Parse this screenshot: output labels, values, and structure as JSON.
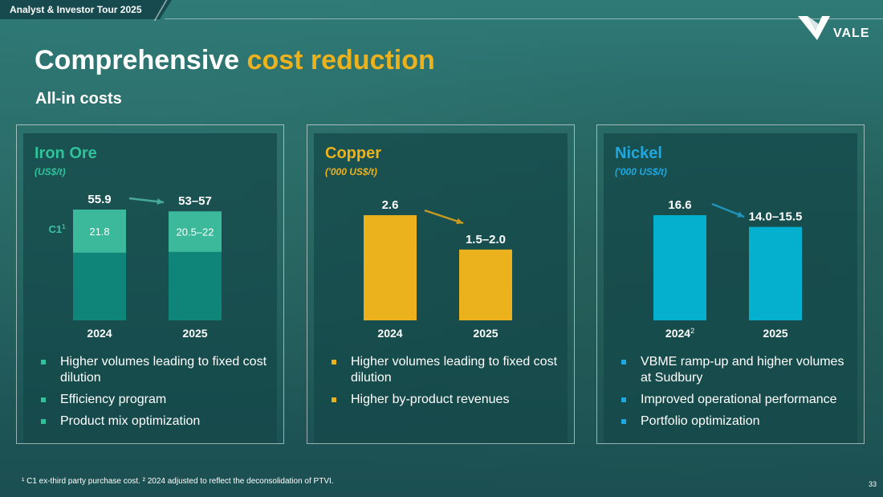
{
  "header": {
    "tour_label": "Analyst & Investor Tour 2025"
  },
  "logo": {
    "text": "VALE"
  },
  "title": {
    "main": "Comprehensive ",
    "accent": "cost reduction"
  },
  "subtitle": "All-in costs",
  "colors": {
    "iron_dark": "#0f8479",
    "iron_light": "#3cb89a",
    "copper": "#ecb21e",
    "nickel": "#05b0cf",
    "title_accent": "#ecb21e"
  },
  "panels": [
    {
      "title": "Iron Ore",
      "unit": "(US$/t)",
      "color": "#2fc29b",
      "bullets": [
        "Higher volumes leading to fixed cost dilution",
        "Efficiency program",
        "Product mix optimization"
      ]
    },
    {
      "title": "Copper",
      "unit": "('000 US$/t)",
      "color": "#ecb21e",
      "bullets": [
        "Higher volumes leading to fixed cost dilution",
        "Higher by-product revenues"
      ]
    },
    {
      "title": "Nickel",
      "unit": "('000 US$/t)",
      "color": "#1fa8e0",
      "bullets": [
        "VBME ramp-up and higher volumes at Sudbury",
        "Improved operational performance",
        "Portfolio optimization"
      ]
    }
  ],
  "chart_data": [
    {
      "type": "bar",
      "title": "Iron Ore",
      "ylabel": "(US$/t)",
      "categories": [
        "2024",
        "2025"
      ],
      "totals": [
        55.9,
        55.0
      ],
      "total_labels": [
        "55.9",
        "53–57"
      ],
      "series": [
        {
          "name": "C1",
          "name_superscript": "1",
          "values": [
            21.8,
            20.5
          ],
          "labels": [
            "21.8",
            "20.5–22"
          ]
        },
        {
          "values": [
            34.1,
            34.5
          ]
        }
      ]
    },
    {
      "type": "bar",
      "title": "Copper",
      "ylabel": "('000 US$/t)",
      "categories": [
        "2024",
        "2025"
      ],
      "values": [
        2.6,
        1.75
      ],
      "labels": [
        "2.6",
        "1.5–2.0"
      ]
    },
    {
      "type": "bar",
      "title": "Nickel",
      "ylabel": "('000 US$/t)",
      "categories": [
        "2024",
        "2025"
      ],
      "category_superscripts": [
        "2",
        ""
      ],
      "values": [
        16.6,
        14.75
      ],
      "labels": [
        "16.6",
        "14.0–15.5"
      ]
    }
  ],
  "footnote": "¹ C1 ex-third party purchase cost. ² 2024 adjusted to reflect the deconsolidation of PTVI.",
  "page_number": "33"
}
